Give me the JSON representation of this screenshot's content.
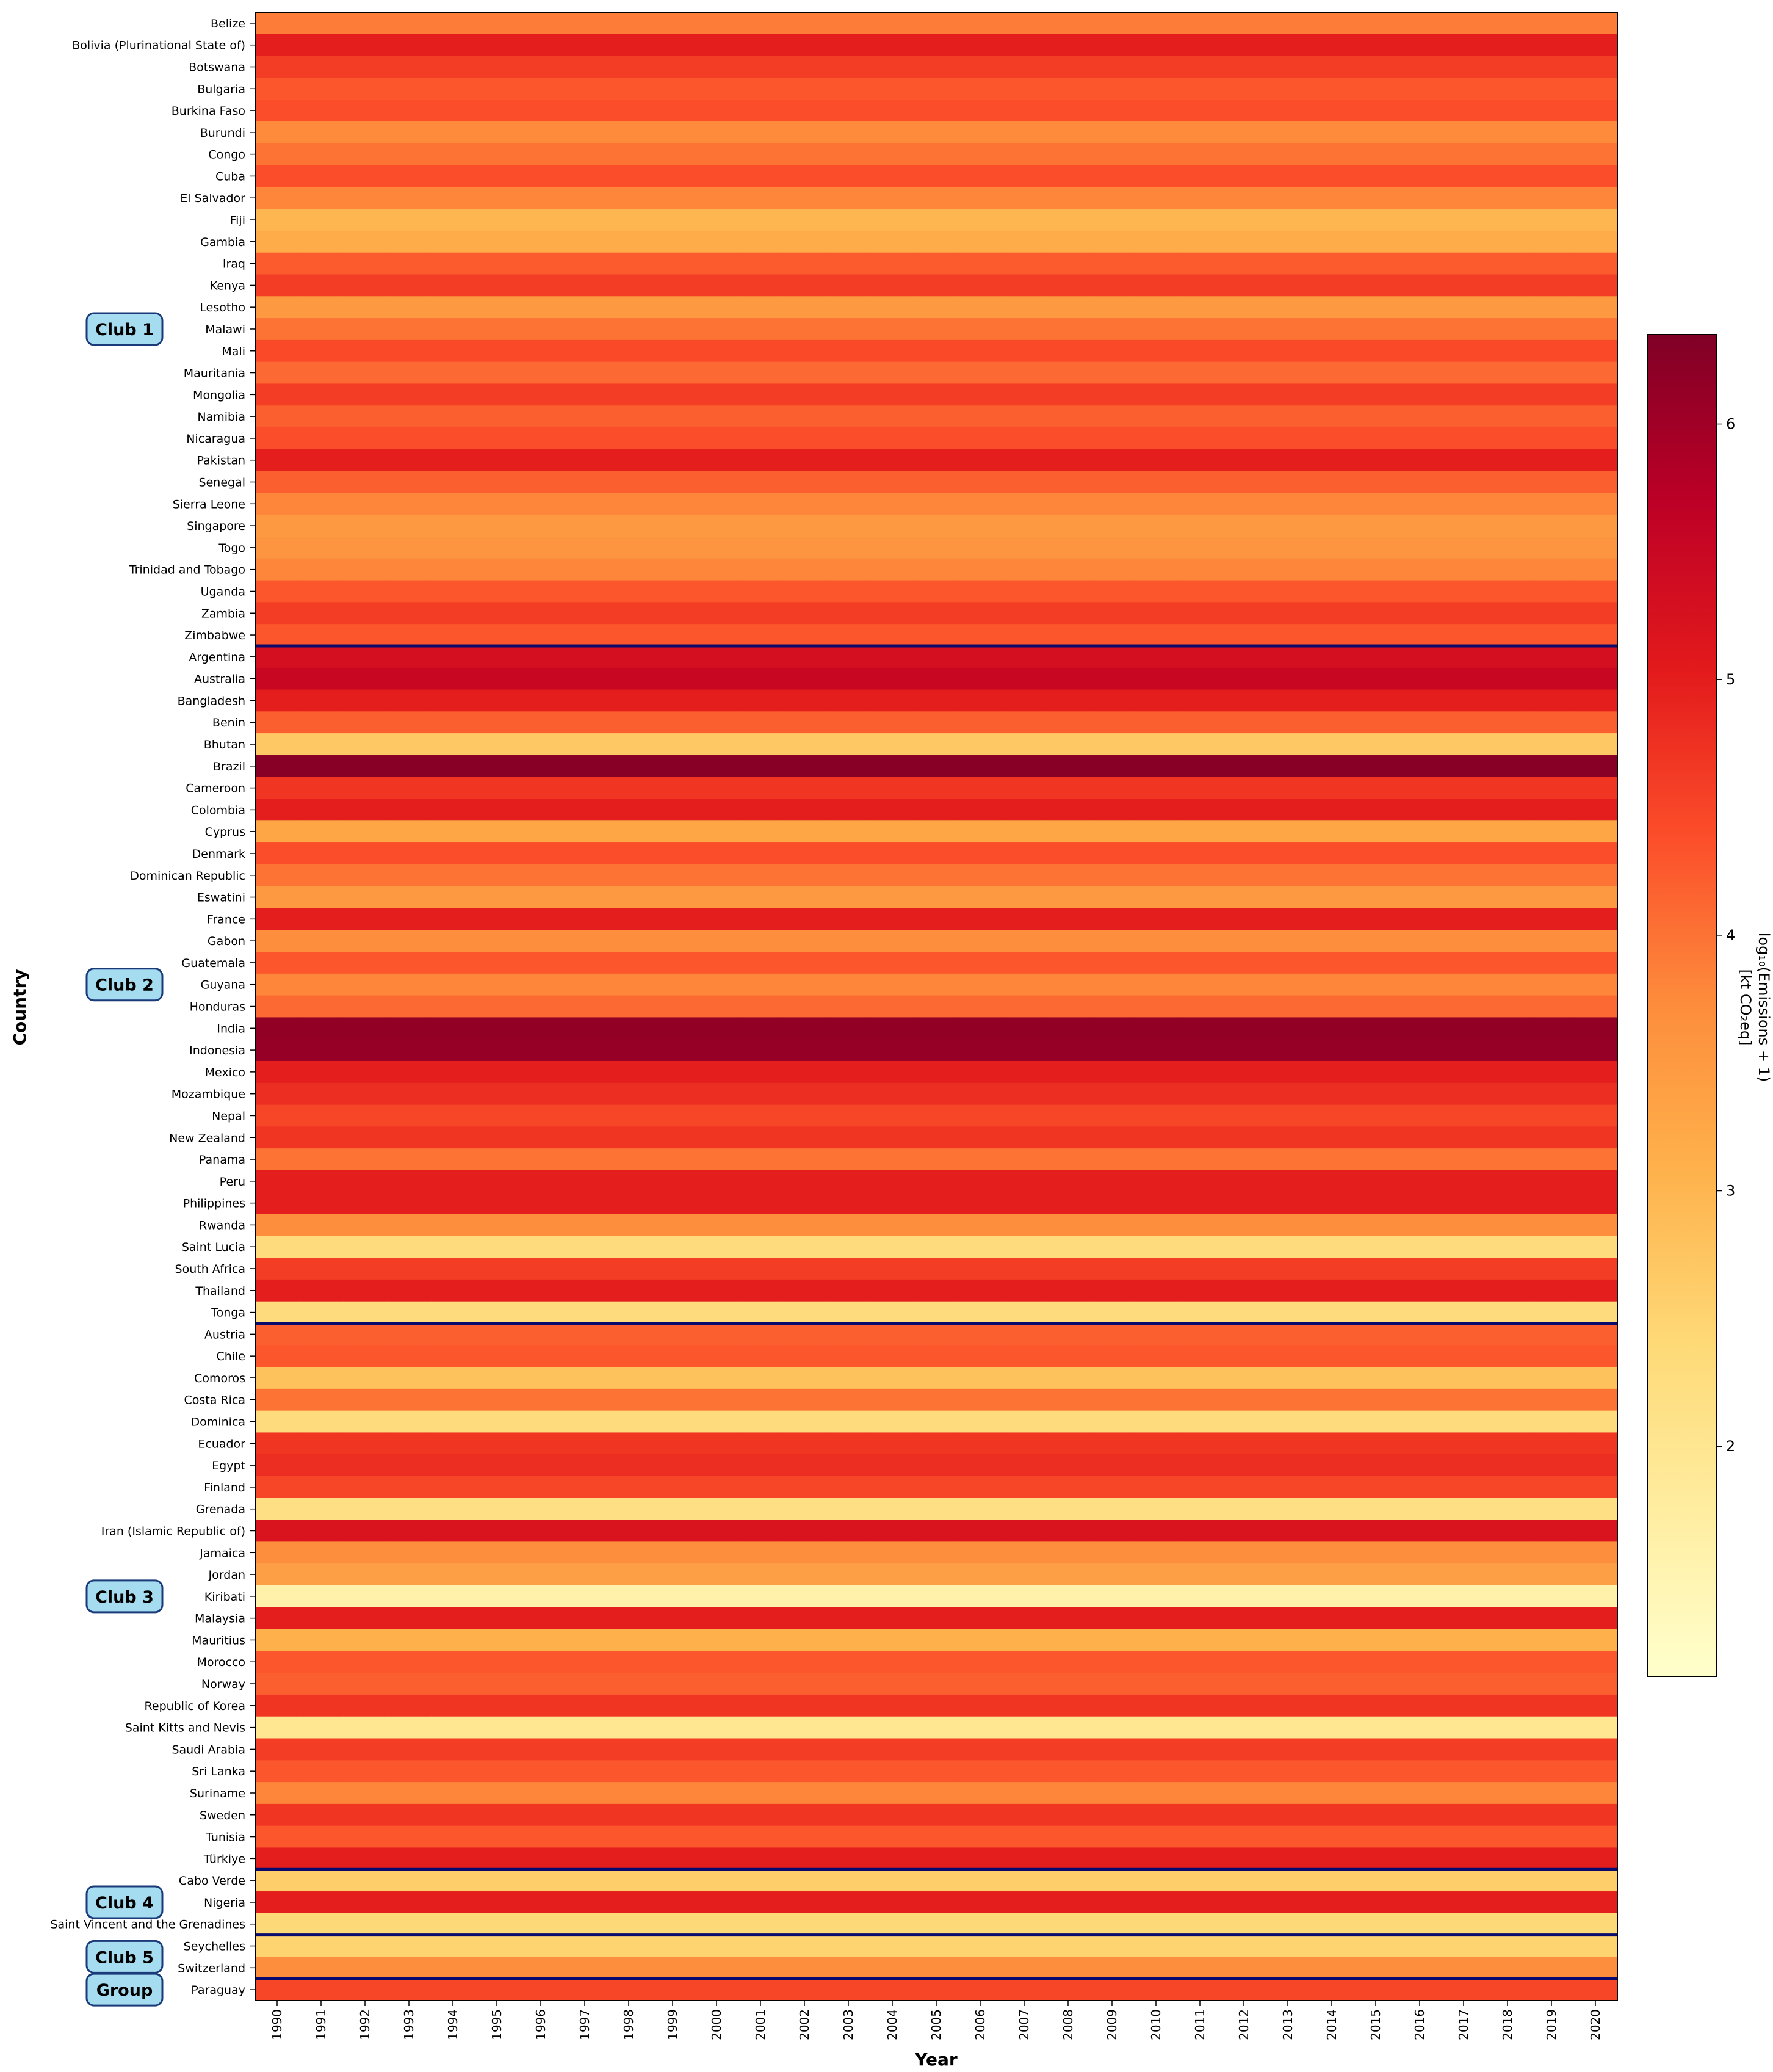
{
  "chart_data": {
    "type": "heatmap",
    "xlabel": "Year",
    "ylabel": "Country",
    "years": [
      "1990",
      "1991",
      "1992",
      "1993",
      "1994",
      "1995",
      "1996",
      "1997",
      "1998",
      "1999",
      "2000",
      "2001",
      "2002",
      "2003",
      "2004",
      "2005",
      "2006",
      "2007",
      "2008",
      "2009",
      "2010",
      "2011",
      "2012",
      "2013",
      "2014",
      "2015",
      "2016",
      "2017",
      "2018",
      "2019",
      "2020"
    ],
    "colorbar": {
      "label_line1": "log₁₀(Emissions + 1)",
      "label_line2": "[kt CO₂eq]",
      "range": [
        1.1,
        6.35
      ],
      "ticks": [
        "2",
        "3",
        "4",
        "5",
        "6"
      ],
      "tick_values": [
        2,
        3,
        4,
        5,
        6
      ]
    },
    "colors": {
      "scale": [
        "#ffffcc",
        "#ffeda0",
        "#fed976",
        "#feb24c",
        "#fd8d3c",
        "#fc4e2a",
        "#e31a1c",
        "#bd0026",
        "#800026"
      ],
      "club_box_fill": "#a6dcef",
      "club_box_stroke": "#1a3a7a",
      "separator": "#0a0a6e"
    },
    "groups": [
      {
        "label": "Club 1",
        "countries": [
          {
            "name": "Belize",
            "values": [
              3.9
            ]
          },
          {
            "name": "Bolivia (Plurinational State of)",
            "values": [
              5.0
            ]
          },
          {
            "name": "Botswana",
            "values": [
              4.6
            ]
          },
          {
            "name": "Bulgaria",
            "values": [
              4.3
            ]
          },
          {
            "name": "Burkina Faso",
            "values": [
              4.4
            ]
          },
          {
            "name": "Burundi",
            "values": [
              3.75
            ]
          },
          {
            "name": "Congo",
            "values": [
              4.0
            ]
          },
          {
            "name": "Cuba",
            "values": [
              4.4
            ]
          },
          {
            "name": "El Salvador",
            "values": [
              3.8
            ]
          },
          {
            "name": "Fiji",
            "values": [
              3.0
            ]
          },
          {
            "name": "Gambia",
            "values": [
              3.2
            ]
          },
          {
            "name": "Iraq",
            "values": [
              4.25
            ]
          },
          {
            "name": "Kenya",
            "values": [
              4.6
            ]
          },
          {
            "name": "Lesotho",
            "values": [
              3.5
            ]
          },
          {
            "name": "Malawi",
            "values": [
              4.0
            ]
          },
          {
            "name": "Mali",
            "values": [
              4.45
            ]
          },
          {
            "name": "Mauritania",
            "values": [
              4.1
            ]
          },
          {
            "name": "Mongolia",
            "values": [
              4.6
            ]
          },
          {
            "name": "Namibia",
            "values": [
              4.2
            ]
          },
          {
            "name": "Nicaragua",
            "values": [
              4.4
            ]
          },
          {
            "name": "Pakistan",
            "values": [
              5.0
            ]
          },
          {
            "name": "Senegal",
            "values": [
              4.2
            ]
          },
          {
            "name": "Sierra Leone",
            "values": [
              3.8
            ]
          },
          {
            "name": "Singapore",
            "values": [
              3.5
            ]
          },
          {
            "name": "Togo",
            "values": [
              3.6
            ]
          },
          {
            "name": "Trinidad and Tobago",
            "values": [
              3.8
            ]
          },
          {
            "name": "Uganda",
            "values": [
              4.3
            ]
          },
          {
            "name": "Zambia",
            "values": [
              4.6
            ]
          },
          {
            "name": "Zimbabwe",
            "values": [
              4.3
            ]
          }
        ]
      },
      {
        "label": "Club 2",
        "countries": [
          {
            "name": "Argentina",
            "values": [
              5.3
            ]
          },
          {
            "name": "Australia",
            "values": [
              5.5
            ]
          },
          {
            "name": "Bangladesh",
            "values": [
              5.0
            ]
          },
          {
            "name": "Benin",
            "values": [
              4.2
            ]
          },
          {
            "name": "Bhutan",
            "values": [
              2.7
            ]
          },
          {
            "name": "Brazil",
            "values": [
              6.25
            ]
          },
          {
            "name": "Cameroon",
            "values": [
              4.7
            ]
          },
          {
            "name": "Colombia",
            "values": [
              5.0
            ]
          },
          {
            "name": "Cyprus",
            "values": [
              3.3
            ]
          },
          {
            "name": "Denmark",
            "values": [
              4.4
            ]
          },
          {
            "name": "Dominican Republic",
            "values": [
              4.0
            ]
          },
          {
            "name": "Eswatini",
            "values": [
              3.5
            ]
          },
          {
            "name": "France",
            "values": [
              5.0
            ]
          },
          {
            "name": "Gabon",
            "values": [
              3.7
            ]
          },
          {
            "name": "Guatemala",
            "values": [
              4.3
            ]
          },
          {
            "name": "Guyana",
            "values": [
              3.8
            ]
          },
          {
            "name": "Honduras",
            "values": [
              4.1
            ]
          },
          {
            "name": "India",
            "values": [
              6.15
            ]
          },
          {
            "name": "Indonesia",
            "values": [
              6.1
            ]
          },
          {
            "name": "Mexico",
            "values": [
              5.0
            ]
          },
          {
            "name": "Mozambique",
            "values": [
              4.8
            ]
          },
          {
            "name": "Nepal",
            "values": [
              4.5
            ]
          },
          {
            "name": "New Zealand",
            "values": [
              4.7
            ]
          },
          {
            "name": "Panama",
            "values": [
              4.0
            ]
          },
          {
            "name": "Peru",
            "values": [
              5.0
            ]
          },
          {
            "name": "Philippines",
            "values": [
              5.0
            ]
          },
          {
            "name": "Rwanda",
            "values": [
              3.7
            ]
          },
          {
            "name": "Saint Lucia",
            "values": [
              2.3
            ]
          },
          {
            "name": "South Africa",
            "values": [
              4.6
            ]
          },
          {
            "name": "Thailand",
            "values": [
              5.0
            ]
          },
          {
            "name": "Tonga",
            "values": [
              2.3
            ]
          }
        ]
      },
      {
        "label": "Club 3",
        "countries": [
          {
            "name": "Austria",
            "values": [
              4.2
            ]
          },
          {
            "name": "Chile",
            "values": [
              4.3
            ]
          },
          {
            "name": "Comoros",
            "values": [
              2.8
            ]
          },
          {
            "name": "Costa Rica",
            "values": [
              4.0
            ]
          },
          {
            "name": "Dominica",
            "values": [
              2.3
            ]
          },
          {
            "name": "Ecuador",
            "values": [
              4.7
            ]
          },
          {
            "name": "Egypt",
            "values": [
              4.8
            ]
          },
          {
            "name": "Finland",
            "values": [
              4.5
            ]
          },
          {
            "name": "Grenada",
            "values": [
              2.2
            ]
          },
          {
            "name": "Iran (Islamic Republic of)",
            "values": [
              5.2
            ]
          },
          {
            "name": "Jamaica",
            "values": [
              3.7
            ]
          },
          {
            "name": "Jordan",
            "values": [
              3.4
            ]
          },
          {
            "name": "Kiribati",
            "values": [
              1.6
            ]
          },
          {
            "name": "Malaysia",
            "values": [
              5.0
            ]
          },
          {
            "name": "Mauritius",
            "values": [
              3.1
            ]
          },
          {
            "name": "Morocco",
            "values": [
              4.3
            ]
          },
          {
            "name": "Norway",
            "values": [
              4.2
            ]
          },
          {
            "name": "Republic of Korea",
            "values": [
              4.7
            ]
          },
          {
            "name": "Saint Kitts and Nevis",
            "values": [
              2.0
            ]
          },
          {
            "name": "Saudi Arabia",
            "values": [
              4.6
            ]
          },
          {
            "name": "Sri Lanka",
            "values": [
              4.3
            ]
          },
          {
            "name": "Suriname",
            "values": [
              3.8
            ]
          },
          {
            "name": "Sweden",
            "values": [
              4.7
            ]
          },
          {
            "name": "Tunisia",
            "values": [
              4.3
            ]
          },
          {
            "name": "Türkiye",
            "values": [
              5.0
            ]
          }
        ]
      },
      {
        "label": "Club 4",
        "countries": [
          {
            "name": "Cabo Verde",
            "values": [
              2.6
            ]
          },
          {
            "name": "Nigeria",
            "values": [
              5.0
            ]
          },
          {
            "name": "Saint Vincent and the Grenadines",
            "values": [
              2.4
            ]
          }
        ]
      },
      {
        "label": "Club 5",
        "countries": [
          {
            "name": "Seychelles",
            "values": [
              2.5
            ]
          },
          {
            "name": "Switzerland",
            "values": [
              3.7
            ]
          }
        ]
      },
      {
        "label": "Group",
        "countries": [
          {
            "name": "Paraguay",
            "values": [
              4.5
            ]
          }
        ]
      }
    ]
  }
}
